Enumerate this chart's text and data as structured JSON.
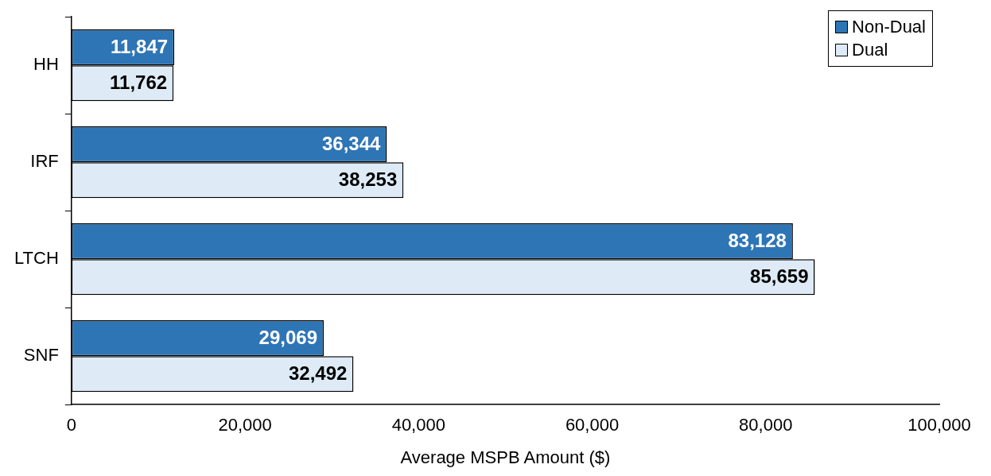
{
  "chart_data": {
    "type": "bar",
    "orientation": "horizontal",
    "xlabel": "Average MSPB Amount ($)",
    "categories": [
      "HH",
      "IRF",
      "LTCH",
      "SNF"
    ],
    "series": [
      {
        "name": "Non-Dual",
        "color": "#2e75b6",
        "values": [
          11847,
          36344,
          83128,
          29069
        ],
        "value_labels": [
          "11,847",
          "36,344",
          "83,128",
          "29,069"
        ]
      },
      {
        "name": "Dual",
        "color": "#deebf7",
        "values": [
          11762,
          38253,
          85659,
          32492
        ],
        "value_labels": [
          "11,762",
          "38,253",
          "85,659",
          "32,492"
        ]
      }
    ],
    "xlim": [
      0,
      100000
    ],
    "xticks": [
      {
        "value": 0,
        "label": "0"
      },
      {
        "value": 20000,
        "label": "20,000"
      },
      {
        "value": 40000,
        "label": "40,000"
      },
      {
        "value": 60000,
        "label": "60,000"
      },
      {
        "value": 80000,
        "label": "80,000"
      },
      {
        "value": 100000,
        "label": "100,000"
      }
    ],
    "grid": false,
    "legend": "top right"
  }
}
